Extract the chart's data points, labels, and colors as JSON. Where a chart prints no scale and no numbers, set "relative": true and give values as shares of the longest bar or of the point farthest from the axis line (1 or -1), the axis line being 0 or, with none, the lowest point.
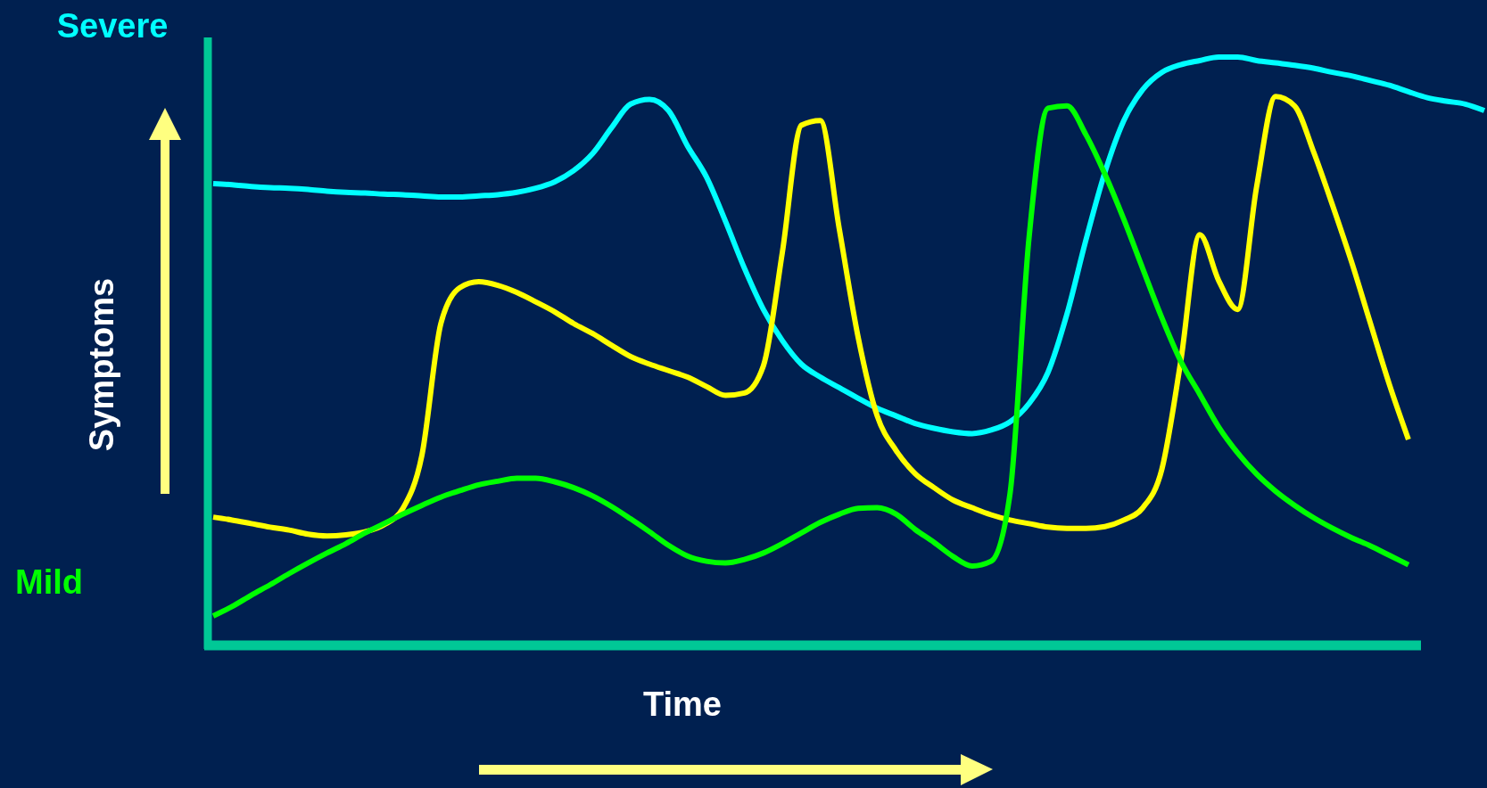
{
  "chart_data": {
    "type": "line",
    "relative": true,
    "xlabel": "Time",
    "ylabel": "Symptoms",
    "annotations": [
      "Severe",
      "Mild"
    ],
    "categories": [
      null,
      null,
      null,
      null,
      null,
      null,
      null,
      null,
      null,
      null,
      null,
      null,
      null,
      null,
      null,
      null,
      null,
      null,
      null,
      null,
      null,
      null,
      null,
      null,
      null,
      null,
      null,
      null,
      null,
      null,
      null,
      null,
      null,
      null,
      null,
      null,
      null,
      null,
      null,
      null,
      null,
      null,
      null,
      null,
      null,
      null,
      null,
      null,
      null,
      null,
      null,
      null,
      null,
      null,
      null,
      null,
      null,
      null,
      null,
      null,
      null,
      null,
      null,
      null,
      null,
      null,
      null,
      null
    ],
    "grid": false,
    "marker": "none",
    "line_style": "solid",
    "series": [
      {
        "color": "#00ffff",
        "values": [
          0.785,
          0.783,
          0.78,
          0.778,
          0.777,
          0.775,
          0.772,
          0.77,
          0.769,
          0.767,
          0.766,
          0.764,
          0.762,
          0.762,
          0.764,
          0.766,
          0.77,
          0.777,
          0.788,
          0.807,
          0.836,
          0.88,
          0.92,
          0.928,
          0.909,
          0.849,
          0.796,
          0.721,
          0.641,
          0.571,
          0.518,
          0.478,
          0.456,
          0.438,
          0.42,
          0.403,
          0.39,
          0.377,
          0.369,
          0.363,
          0.36,
          0.366,
          0.38,
          0.411,
          0.464,
          0.563,
          0.689,
          0.804,
          0.892,
          0.945,
          0.974,
          0.987,
          0.994,
          1.0,
          1.0,
          0.994,
          0.99,
          0.986,
          0.981,
          0.974,
          0.968,
          0.96,
          0.952,
          0.941,
          0.931,
          0.925,
          0.92,
          0.909
        ]
      },
      {
        "color": "#ffff00",
        "values": [
          0.218,
          0.213,
          0.207,
          0.201,
          0.196,
          0.189,
          0.186,
          0.188,
          0.193,
          0.205,
          0.233,
          0.323,
          0.547,
          0.608,
          0.618,
          0.612,
          0.6,
          0.584,
          0.567,
          0.547,
          0.53,
          0.51,
          0.491,
          0.478,
          0.467,
          0.456,
          0.44,
          0.425,
          0.429,
          0.475,
          0.668,
          0.884,
          0.892,
          0.708,
          0.523,
          0.39,
          0.331,
          0.292,
          0.268,
          0.247,
          0.234,
          0.222,
          0.213,
          0.207,
          0.201,
          0.199,
          0.199,
          0.202,
          0.213,
          0.234,
          0.299,
          0.483,
          0.698,
          0.62,
          0.571,
          0.78,
          0.933,
          0.917,
          0.839,
          0.748,
          0.652,
          0.547,
          0.443,
          0.35,
          null,
          null,
          null,
          null
        ]
      },
      {
        "color": "#00ff00",
        "values": [
          0.05,
          0.066,
          0.085,
          0.103,
          0.122,
          0.14,
          0.157,
          0.173,
          0.191,
          0.207,
          0.223,
          0.238,
          0.252,
          0.263,
          0.273,
          0.279,
          0.284,
          0.284,
          0.278,
          0.268,
          0.254,
          0.236,
          0.215,
          0.193,
          0.17,
          0.152,
          0.143,
          0.14,
          0.146,
          0.157,
          0.173,
          0.191,
          0.209,
          0.223,
          0.233,
          0.234,
          0.223,
          0.197,
          0.175,
          0.151,
          0.135,
          0.143,
          0.258,
          0.692,
          0.913,
          0.917,
          0.868,
          0.801,
          0.724,
          0.64,
          0.557,
          0.483,
          0.427,
          0.371,
          0.327,
          0.291,
          0.262,
          0.238,
          0.217,
          0.199,
          0.183,
          0.169,
          0.153,
          0.137,
          null,
          null,
          null,
          null
        ]
      }
    ]
  }
}
